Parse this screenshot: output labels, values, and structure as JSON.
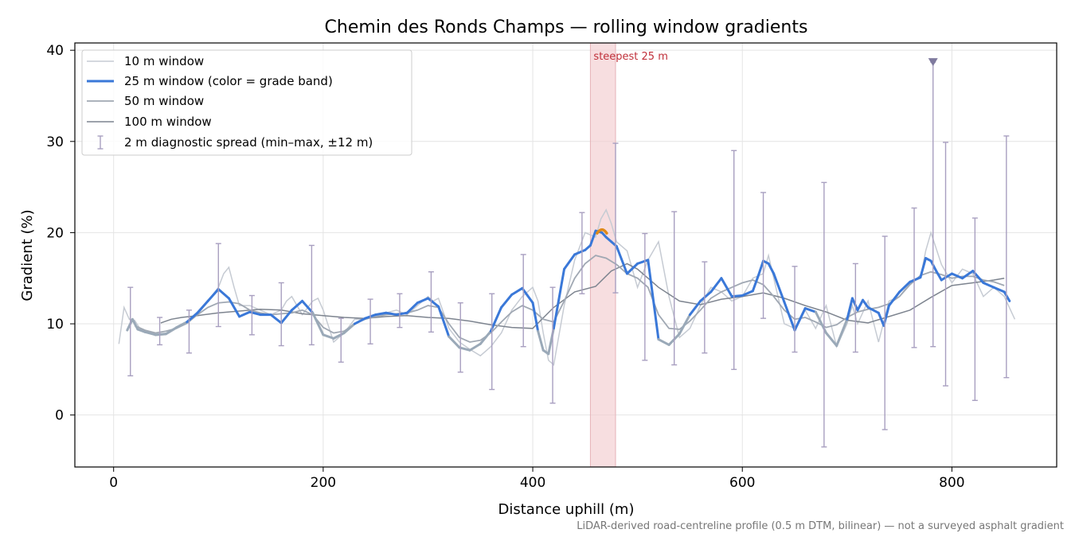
{
  "chart_data": {
    "type": "line",
    "title": "Chemin des Ronds Champs — rolling window gradients",
    "xlabel": "Distance uphill (m)",
    "ylabel": "Gradient (%)",
    "xlim": [
      -37,
      900
    ],
    "ylim": [
      -5.7,
      40.8
    ],
    "xticks": [
      "0",
      "200",
      "400",
      "600",
      "800"
    ],
    "yticks": [
      "0",
      "10",
      "20",
      "30",
      "40"
    ],
    "grid": true,
    "legend_position": "top-left",
    "footnote": "LiDAR-derived road-centreline profile (0.5 m DTM, bilinear) — not a surveyed asphalt gradient",
    "annotation": {
      "label": "steepest 25 m",
      "x_range": [
        455,
        479
      ],
      "color": "#e0a0a8"
    },
    "steepest_marker": {
      "x": 466,
      "y": 20.2
    },
    "outlier_marker": {
      "x": 782,
      "y": 38.7
    },
    "colors": {
      "w10": "#c6cbd3",
      "w25_steep": "#3a78d8",
      "w25_mild": "#9aa9b8",
      "w50": "#a0a8b3",
      "w100": "#7d848f",
      "spread": "#a89fc0",
      "band": "#f2cccf",
      "annot": "#c0303a",
      "peak": "#e08a1a"
    },
    "series": [
      {
        "name": "10 m window",
        "x": [
          5,
          10,
          15,
          20,
          25,
          30,
          35,
          40,
          50,
          60,
          70,
          80,
          90,
          100,
          105,
          110,
          115,
          120,
          130,
          140,
          150,
          160,
          165,
          170,
          180,
          190,
          195,
          200,
          210,
          220,
          230,
          240,
          250,
          260,
          270,
          280,
          290,
          300,
          305,
          310,
          320,
          330,
          340,
          350,
          360,
          370,
          380,
          390,
          400,
          405,
          410,
          415,
          420,
          430,
          440,
          450,
          460,
          465,
          470,
          475,
          480,
          490,
          500,
          510,
          520,
          530,
          540,
          550,
          560,
          570,
          580,
          590,
          600,
          610,
          620,
          625,
          630,
          640,
          650,
          660,
          670,
          680,
          690,
          700,
          705,
          710,
          720,
          730,
          740,
          750,
          760,
          770,
          775,
          780,
          790,
          800,
          810,
          820,
          830,
          840,
          850,
          860
        ],
        "values": [
          7.8,
          11.8,
          10.5,
          10.4,
          9.5,
          9.2,
          9.0,
          8.7,
          8.8,
          9.5,
          10.0,
          11.0,
          12.5,
          14.0,
          15.5,
          16.2,
          14.0,
          12.0,
          12.0,
          11.5,
          11.0,
          11.5,
          12.5,
          13.0,
          11.0,
          12.5,
          12.8,
          11.5,
          8.0,
          9.0,
          10.5,
          10.5,
          10.8,
          11.2,
          11.5,
          11.0,
          12.0,
          13.0,
          12.5,
          12.8,
          9.5,
          8.0,
          7.2,
          6.5,
          7.5,
          9.0,
          11.5,
          13.0,
          14.0,
          12.5,
          9.0,
          6.0,
          5.5,
          12.0,
          17.0,
          20.0,
          19.5,
          21.5,
          22.5,
          21.0,
          19.0,
          18.0,
          14.0,
          17.0,
          19.0,
          13.0,
          8.5,
          9.5,
          12.0,
          14.0,
          13.5,
          12.5,
          13.0,
          15.0,
          15.5,
          17.5,
          15.0,
          10.0,
          9.5,
          11.5,
          9.5,
          12.0,
          7.5,
          10.0,
          12.0,
          10.0,
          12.5,
          8.0,
          12.5,
          13.0,
          14.5,
          15.0,
          18.0,
          20.0,
          16.5,
          14.5,
          16.0,
          15.5,
          13.0,
          14.0,
          13.0,
          10.5
        ]
      },
      {
        "name": "25 m window (color = grade band)",
        "x": [
          13,
          18,
          23,
          30,
          40,
          50,
          60,
          70,
          80,
          90,
          100,
          110,
          120,
          130,
          140,
          150,
          160,
          170,
          180,
          190,
          200,
          210,
          220,
          230,
          240,
          250,
          260,
          270,
          280,
          290,
          300,
          310,
          320,
          330,
          340,
          350,
          360,
          370,
          380,
          390,
          400,
          405,
          410,
          415,
          420,
          430,
          440,
          450,
          455,
          460,
          466,
          470,
          475,
          480,
          490,
          500,
          510,
          520,
          530,
          540,
          550,
          560,
          570,
          580,
          590,
          600,
          610,
          615,
          620,
          625,
          630,
          640,
          650,
          660,
          670,
          680,
          690,
          700,
          705,
          710,
          715,
          720,
          730,
          735,
          740,
          750,
          760,
          770,
          775,
          780,
          785,
          790,
          800,
          810,
          820,
          830,
          840,
          850,
          855
        ],
        "values": [
          9.3,
          10.5,
          9.4,
          9.1,
          8.8,
          8.9,
          9.6,
          10.2,
          11.2,
          12.5,
          13.8,
          12.8,
          10.8,
          11.3,
          11.0,
          11.0,
          10.1,
          11.5,
          12.5,
          11.2,
          8.8,
          8.4,
          9.0,
          10.0,
          10.6,
          11.0,
          11.2,
          11.0,
          11.2,
          12.3,
          12.8,
          11.9,
          8.6,
          7.4,
          7.1,
          7.8,
          9.2,
          11.8,
          13.2,
          13.9,
          12.3,
          9.2,
          7.1,
          6.7,
          9.5,
          16.0,
          17.6,
          18.1,
          18.6,
          20.2,
          20.0,
          19.5,
          19.0,
          18.5,
          15.5,
          16.6,
          17.0,
          8.3,
          7.7,
          8.9,
          11.0,
          12.5,
          13.5,
          15.0,
          13.0,
          13.1,
          13.6,
          15.2,
          16.9,
          16.6,
          15.5,
          12.4,
          9.3,
          11.7,
          11.3,
          9.0,
          7.6,
          10.5,
          12.8,
          11.5,
          12.6,
          11.8,
          11.2,
          9.8,
          12.0,
          13.5,
          14.6,
          15.1,
          17.2,
          16.9,
          15.8,
          14.8,
          15.5,
          15.0,
          15.8,
          14.5,
          14.0,
          13.5,
          12.5
        ]
      },
      {
        "name": "50 m window",
        "x": [
          20,
          30,
          40,
          50,
          60,
          70,
          80,
          90,
          100,
          110,
          120,
          130,
          140,
          150,
          160,
          170,
          180,
          190,
          200,
          210,
          220,
          230,
          240,
          250,
          260,
          270,
          280,
          290,
          300,
          310,
          320,
          330,
          340,
          350,
          360,
          370,
          380,
          390,
          400,
          410,
          420,
          430,
          440,
          450,
          460,
          470,
          480,
          490,
          500,
          510,
          520,
          530,
          540,
          550,
          560,
          570,
          580,
          590,
          600,
          610,
          620,
          630,
          640,
          650,
          660,
          670,
          680,
          690,
          700,
          710,
          720,
          730,
          740,
          750,
          760,
          770,
          780,
          790,
          800,
          810,
          820,
          830,
          840,
          850
        ],
        "values": [
          9.8,
          9.3,
          9.0,
          9.2,
          9.5,
          10.1,
          11.0,
          11.8,
          12.3,
          12.4,
          12.2,
          11.5,
          11.2,
          11.0,
          11.1,
          11.2,
          11.5,
          11.0,
          9.6,
          9.0,
          9.2,
          10.0,
          10.5,
          10.8,
          11.0,
          11.1,
          11.2,
          11.5,
          12.0,
          11.8,
          10.0,
          8.5,
          8.0,
          8.2,
          9.0,
          10.2,
          11.3,
          12.0,
          11.5,
          10.5,
          10.2,
          12.5,
          15.0,
          16.6,
          17.5,
          17.2,
          16.5,
          15.5,
          15.0,
          14.0,
          11.0,
          9.5,
          9.4,
          10.3,
          11.5,
          12.8,
          13.5,
          14.0,
          14.5,
          14.8,
          14.3,
          13.0,
          11.5,
          10.5,
          10.7,
          10.2,
          9.6,
          9.9,
          10.7,
          11.3,
          11.6,
          11.8,
          12.2,
          13.0,
          14.3,
          15.3,
          15.7,
          15.4,
          15.0,
          15.2,
          15.2,
          14.8,
          14.6,
          14.2
        ]
      },
      {
        "name": "100 m window",
        "x": [
          45,
          55,
          65,
          80,
          100,
          120,
          140,
          160,
          180,
          200,
          220,
          240,
          260,
          280,
          300,
          320,
          340,
          360,
          380,
          400,
          420,
          440,
          460,
          475,
          490,
          500,
          520,
          540,
          560,
          580,
          600,
          620,
          640,
          660,
          680,
          700,
          720,
          740,
          760,
          780,
          800,
          820,
          840,
          850
        ],
        "values": [
          10.1,
          10.5,
          10.7,
          10.9,
          11.2,
          11.4,
          11.6,
          11.5,
          11.1,
          10.9,
          10.7,
          10.6,
          10.8,
          10.9,
          10.7,
          10.6,
          10.3,
          9.9,
          9.6,
          9.5,
          11.8,
          13.5,
          14.1,
          15.8,
          16.6,
          16.0,
          14.0,
          12.5,
          12.1,
          12.7,
          13.0,
          13.4,
          12.8,
          12.0,
          11.3,
          10.4,
          10.1,
          10.8,
          11.5,
          12.9,
          14.2,
          14.5,
          14.8,
          15.0
        ]
      }
    ],
    "spread_bars": [
      {
        "x": 16,
        "min": 4.3,
        "max": 14.0
      },
      {
        "x": 44,
        "min": 7.7,
        "max": 10.7
      },
      {
        "x": 72,
        "min": 6.8,
        "max": 11.5
      },
      {
        "x": 100,
        "min": 9.7,
        "max": 18.8
      },
      {
        "x": 132,
        "min": 8.8,
        "max": 13.1
      },
      {
        "x": 160,
        "min": 7.6,
        "max": 14.5
      },
      {
        "x": 189,
        "min": 7.7,
        "max": 18.6
      },
      {
        "x": 217,
        "min": 5.8,
        "max": 10.6
      },
      {
        "x": 245,
        "min": 7.8,
        "max": 12.7
      },
      {
        "x": 273,
        "min": 9.6,
        "max": 13.3
      },
      {
        "x": 303,
        "min": 9.1,
        "max": 15.7
      },
      {
        "x": 331,
        "min": 4.7,
        "max": 12.3
      },
      {
        "x": 361,
        "min": 2.8,
        "max": 13.3
      },
      {
        "x": 391,
        "min": 7.5,
        "max": 17.6
      },
      {
        "x": 419,
        "min": 1.3,
        "max": 14.0
      },
      {
        "x": 447,
        "min": 13.3,
        "max": 22.2
      },
      {
        "x": 479,
        "min": 13.4,
        "max": 29.8
      },
      {
        "x": 507,
        "min": 6.0,
        "max": 19.9
      },
      {
        "x": 535,
        "min": 5.5,
        "max": 22.3
      },
      {
        "x": 564,
        "min": 6.8,
        "max": 16.8
      },
      {
        "x": 592,
        "min": 5.0,
        "max": 29.0
      },
      {
        "x": 620,
        "min": 10.6,
        "max": 24.4
      },
      {
        "x": 650,
        "min": 6.9,
        "max": 16.3
      },
      {
        "x": 678,
        "min": -3.5,
        "max": 25.5
      },
      {
        "x": 708,
        "min": 6.9,
        "max": 16.6
      },
      {
        "x": 736,
        "min": -1.6,
        "max": 19.6
      },
      {
        "x": 764,
        "min": 7.4,
        "max": 22.7
      },
      {
        "x": 782,
        "min": 7.5,
        "max": 38.7
      },
      {
        "x": 794,
        "min": 3.2,
        "max": 29.9
      },
      {
        "x": 822,
        "min": 1.6,
        "max": 21.6
      },
      {
        "x": 852,
        "min": 4.1,
        "max": 30.6
      }
    ],
    "legend": [
      {
        "label": "10 m window",
        "style": "w10"
      },
      {
        "label": "25 m window (color = grade band)",
        "style": "w25"
      },
      {
        "label": "50 m window",
        "style": "w50"
      },
      {
        "label": "100 m window",
        "style": "w100"
      },
      {
        "label": "2 m diagnostic spread (min–max, ±12 m)",
        "style": "spread"
      }
    ]
  }
}
